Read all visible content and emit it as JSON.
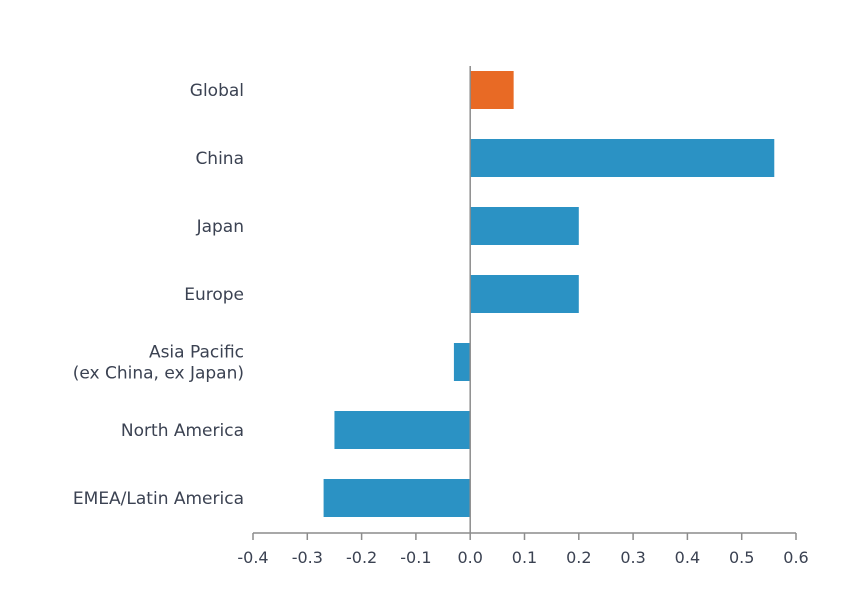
{
  "chart_data": {
    "type": "bar",
    "orientation": "horizontal",
    "categories": [
      "Global",
      "China",
      "Japan",
      "Europe",
      [
        "Asia Pacific",
        "(ex China, ex Japan)"
      ],
      "North America",
      "EMEA/Latin America"
    ],
    "values": [
      0.08,
      0.56,
      0.2,
      0.2,
      -0.03,
      -0.25,
      -0.27
    ],
    "colors": [
      "#e86a25",
      "#2b92c4",
      "#2b92c4",
      "#2b92c4",
      "#2b92c4",
      "#2b92c4",
      "#2b92c4"
    ],
    "xlim": [
      -0.4,
      0.6
    ],
    "xticks": [
      -0.4,
      -0.3,
      -0.2,
      -0.1,
      0.0,
      0.1,
      0.2,
      0.3,
      0.4,
      0.5,
      0.6
    ],
    "xtick_labels": [
      "-0.4",
      "-0.3",
      "-0.2",
      "-0.1",
      "0.0",
      "0.1",
      "0.2",
      "0.3",
      "0.4",
      "0.5",
      "0.6"
    ],
    "title": "",
    "xlabel": "",
    "ylabel": "",
    "grid": false,
    "legend": "none"
  }
}
